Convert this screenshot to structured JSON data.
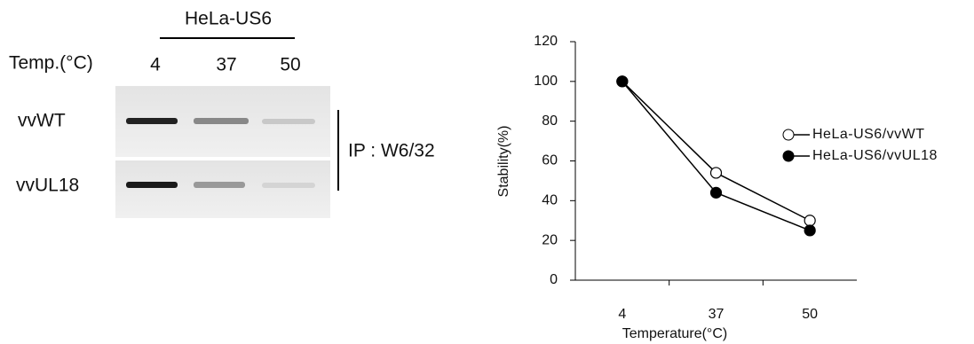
{
  "gel": {
    "cell_line": "HeLa-US6",
    "temp_label": "Temp.(°C)",
    "temps": [
      "4",
      "37",
      "50"
    ],
    "rows": [
      "vvWT",
      "vvUL18"
    ],
    "ip_label": "IP : W6/32"
  },
  "chart_data": {
    "type": "line",
    "x_label": "Temperature(°C)",
    "y_label": "Stability(%)",
    "categories": [
      "4",
      "37",
      "50"
    ],
    "series": [
      {
        "name": "HeLa-US6/vvWT",
        "color": "#000000",
        "marker": "open",
        "values": [
          100,
          54,
          30
        ]
      },
      {
        "name": "HeLa-US6/vvUL18",
        "color": "#000000",
        "marker": "filled",
        "values": [
          100,
          44,
          25
        ]
      }
    ],
    "ylim": [
      0,
      120
    ],
    "yticks": [
      0,
      20,
      40,
      60,
      80,
      100,
      120
    ],
    "grid": false,
    "legend": "right"
  }
}
